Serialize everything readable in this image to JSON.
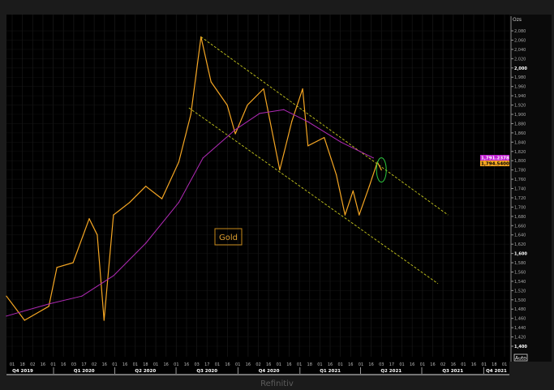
{
  "chart_data": {
    "type": "line",
    "title": "",
    "annotation_label": "Gold",
    "yunit": "Ozs",
    "ylim": [
      1400,
      2080
    ],
    "yticks": [
      1400,
      1420,
      1440,
      1460,
      1480,
      1500,
      1520,
      1540,
      1560,
      1580,
      1600,
      1620,
      1640,
      1660,
      1680,
      1700,
      1720,
      1740,
      1760,
      1780,
      1800,
      1820,
      1840,
      1860,
      1880,
      1900,
      1920,
      1940,
      1960,
      1980,
      2000,
      2020,
      2040,
      2060,
      2080
    ],
    "ytick_bold": [
      1400,
      1600,
      2000
    ],
    "x_day_labels": [
      "01",
      "18",
      "02",
      "16",
      "01",
      "16",
      "03",
      "17",
      "02",
      "16",
      "01",
      "16",
      "01",
      "18",
      "01",
      "16",
      "01",
      "16",
      "03",
      "17",
      "01",
      "16",
      "01",
      "16",
      "02",
      "16",
      "01",
      "16",
      "01",
      "18",
      "01",
      "16",
      "01",
      "16",
      "01",
      "16",
      "03",
      "17",
      "01",
      "16",
      "01",
      "16",
      "02",
      "16",
      "01",
      "16",
      "01",
      "18",
      "01"
    ],
    "x_quarter_labels": [
      "Q4 2019",
      "Q1 2020",
      "Q2 2020",
      "Q3 2020",
      "Q4 2020",
      "Q1 2021",
      "Q2 2021",
      "Q3 2021",
      "Q4 2021"
    ],
    "quarter_starts": [
      "2020-01-01",
      "2020-04-01",
      "2020-07-01",
      "2020-10-01",
      "2021-01-01",
      "2021-04-01",
      "2021-07-01",
      "2021-10-01"
    ],
    "grid": true,
    "series": [
      {
        "kind": "price",
        "color": "#f5a623",
        "points": [
          [
            "2019-10-23",
            1508
          ],
          [
            "2019-11-19",
            1456
          ],
          [
            "2019-12-25",
            1486
          ],
          [
            "2020-01-06",
            1570
          ],
          [
            "2020-01-30",
            1580
          ],
          [
            "2020-02-23",
            1675
          ],
          [
            "2020-03-06",
            1640
          ],
          [
            "2020-03-16",
            1456
          ],
          [
            "2020-03-30",
            1683
          ],
          [
            "2020-04-23",
            1710
          ],
          [
            "2020-05-17",
            1745
          ],
          [
            "2020-06-10",
            1718
          ],
          [
            "2020-07-05",
            1797
          ],
          [
            "2020-07-23",
            1900
          ],
          [
            "2020-08-07",
            2067
          ],
          [
            "2020-08-22",
            1970
          ],
          [
            "2020-09-15",
            1920
          ],
          [
            "2020-09-27",
            1858
          ],
          [
            "2020-10-15",
            1920
          ],
          [
            "2020-11-08",
            1955
          ],
          [
            "2020-12-02",
            1780
          ],
          [
            "2020-12-20",
            1885
          ],
          [
            "2021-01-05",
            1955
          ],
          [
            "2021-01-13",
            1832
          ],
          [
            "2021-02-06",
            1850
          ],
          [
            "2021-02-24",
            1770
          ],
          [
            "2021-03-09",
            1683
          ],
          [
            "2021-03-21",
            1735
          ],
          [
            "2021-03-30",
            1683
          ],
          [
            "2021-04-14",
            1745
          ],
          [
            "2021-04-26",
            1797
          ],
          [
            "2021-05-02",
            1780
          ]
        ]
      },
      {
        "kind": "moving-average",
        "color": "#b02ab5",
        "points": [
          [
            "2019-10-23",
            1465
          ],
          [
            "2019-12-25",
            1491
          ],
          [
            "2020-02-12",
            1508
          ],
          [
            "2020-03-30",
            1552
          ],
          [
            "2020-05-17",
            1622
          ],
          [
            "2020-07-05",
            1710
          ],
          [
            "2020-08-10",
            1806
          ],
          [
            "2020-09-27",
            1867
          ],
          [
            "2020-11-02",
            1902
          ],
          [
            "2020-12-08",
            1910
          ],
          [
            "2021-01-13",
            1884
          ],
          [
            "2021-03-03",
            1840
          ],
          [
            "2021-04-20",
            1806
          ]
        ]
      }
    ],
    "trend_lines": [
      {
        "name": "channel-upper",
        "color": "#c8c81e",
        "from": [
          "2020-08-07",
          2067
        ],
        "to": [
          "2021-08-09",
          1683
        ]
      },
      {
        "name": "channel-lower",
        "color": "#c8c81e",
        "from": [
          "2020-07-20",
          1914
        ],
        "to": [
          "2021-07-25",
          1535
        ]
      }
    ],
    "highlight_ellipse": {
      "color": "#2ecc40",
      "center": [
        "2021-05-02",
        1780
      ]
    },
    "last_value_labels": [
      {
        "text": "1,791.2378",
        "color": "#c020d0"
      },
      {
        "text": "1,794.5400",
        "color": "#f5a623"
      }
    ]
  },
  "controls": {
    "auto_label": "Auto"
  },
  "footer": {
    "source": "Refinitiv"
  }
}
